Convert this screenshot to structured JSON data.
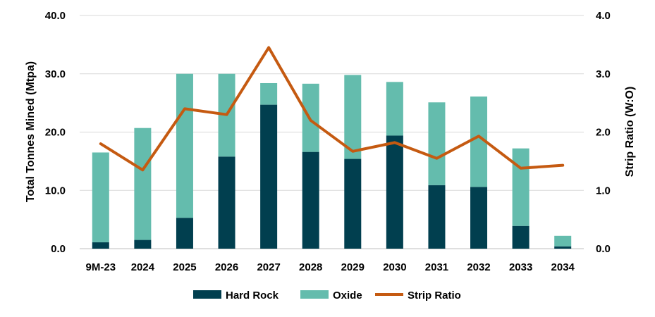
{
  "chart_data": {
    "type": "bar",
    "stacked": true,
    "categories": [
      "9M-23",
      "2024",
      "2025",
      "2026",
      "2027",
      "2028",
      "2029",
      "2030",
      "2031",
      "2032",
      "2033",
      "2034"
    ],
    "series": [
      {
        "name": "Hard Rock",
        "type": "bar",
        "axis": "left",
        "color": "#013f4f",
        "values": [
          1.1,
          1.5,
          5.3,
          15.8,
          24.7,
          16.6,
          15.4,
          19.4,
          10.9,
          10.6,
          3.9,
          0.4
        ]
      },
      {
        "name": "Oxide",
        "type": "bar",
        "axis": "left",
        "color": "#64bcad",
        "values": [
          15.4,
          19.2,
          24.7,
          14.2,
          3.7,
          11.7,
          14.4,
          9.2,
          14.2,
          15.5,
          13.3,
          1.8
        ]
      },
      {
        "name": "Strip Ratio",
        "type": "line",
        "axis": "right",
        "color": "#c55a11",
        "values": [
          1.8,
          1.35,
          2.4,
          2.3,
          3.45,
          2.2,
          1.67,
          1.82,
          1.55,
          1.93,
          1.38,
          1.43
        ]
      }
    ],
    "y_left": {
      "label": "Total Tonnes Mined (Mtpa)",
      "range": [
        0,
        40
      ],
      "ticks": [
        "0.0",
        "10.0",
        "20.0",
        "30.0",
        "40.0"
      ]
    },
    "y_right": {
      "label": "Strip Ratio (W:O)",
      "range": [
        0,
        4
      ],
      "ticks": [
        "0.0",
        "1.0",
        "2.0",
        "3.0",
        "4.0"
      ]
    },
    "grid": true,
    "legend": "bottom"
  }
}
